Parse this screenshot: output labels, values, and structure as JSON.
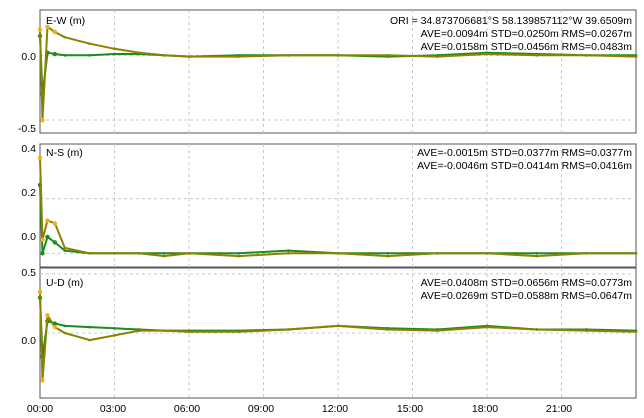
{
  "window": {
    "background": "#ffffff"
  },
  "colors": {
    "green": "#1f8a1f",
    "olive": "#8a8200",
    "orange": "#f2b011",
    "grid": "#c8c8c8",
    "axis": "#555555"
  },
  "header": {
    "ori": "ORI = 34.873706681°S   58.139857112°W 39.6509m"
  },
  "x_tick_labels": [
    "00:00",
    "03:00",
    "06:00",
    "09:00",
    "12:00",
    "15:00",
    "18:00",
    "21:00"
  ],
  "panels": [
    {
      "title": "E-W (m)",
      "stats": [
        "AVE=0.0094m STD=0.0250m RMS=0.0267m",
        "AVE=0.0158m STD=0.0456m RMS=0.0483m"
      ],
      "y_tick_labels": [
        "0.0",
        "-0.5"
      ]
    },
    {
      "title": "N-S (m)",
      "stats": [
        "AVE=-0.0015m STD=0.0377m RMS=0.0377m",
        "AVE=-0.0046m STD=0.0414m RMS=0.0416m"
      ],
      "y_tick_labels": [
        "0.4",
        "0.2",
        "0.0"
      ]
    },
    {
      "title": "U-D (m)",
      "stats": [
        "AVE=0.0408m STD=0.0656m RMS=0.0773m",
        "AVE=0.0269m STD=0.0588m RMS=0.0647m"
      ],
      "y_tick_labels": [
        "0.5",
        "0.0"
      ]
    }
  ],
  "chart_data": [
    {
      "type": "scatter",
      "title": "E-W (m)",
      "x_unit": "hours",
      "xlim": [
        0,
        24
      ],
      "ylim": [
        -0.6,
        0.35
      ],
      "series": [
        {
          "color": "#1f8a1f",
          "x": [
            0.0,
            0.1,
            0.3,
            0.6,
            1,
            2,
            3,
            4,
            5,
            6,
            8,
            10,
            12,
            14,
            16,
            18,
            20,
            22,
            24
          ],
          "y": [
            0.15,
            -0.3,
            0.02,
            0.01,
            0.0,
            0.0,
            0.01,
            0.01,
            0.0,
            -0.01,
            0.0,
            0.0,
            0.0,
            -0.01,
            0.0,
            0.02,
            0.01,
            0.0,
            0.0
          ]
        },
        {
          "color": "#8a8200",
          "x": [
            0.0,
            0.1,
            0.3,
            0.6,
            1,
            2,
            3,
            4,
            5,
            6,
            8,
            10,
            12,
            14,
            16,
            18,
            20,
            22,
            24
          ],
          "y": [
            0.2,
            -0.5,
            0.22,
            0.18,
            0.14,
            0.09,
            0.05,
            0.02,
            0.0,
            -0.01,
            -0.01,
            0.0,
            0.0,
            0.0,
            -0.01,
            0.01,
            0.0,
            0.0,
            -0.01
          ]
        }
      ]
    },
    {
      "type": "scatter",
      "title": "N-S (m)",
      "x_unit": "hours",
      "xlim": [
        0,
        24
      ],
      "ylim": [
        -0.05,
        0.4
      ],
      "series": [
        {
          "color": "#1f8a1f",
          "x": [
            0.0,
            0.1,
            0.3,
            0.6,
            1,
            2,
            3,
            4,
            5,
            6,
            8,
            10,
            12,
            14,
            16,
            18,
            20,
            22,
            24
          ],
          "y": [
            0.25,
            0.0,
            0.06,
            0.04,
            0.01,
            0.0,
            0.0,
            0.0,
            0.0,
            0.0,
            0.0,
            0.01,
            0.0,
            0.0,
            0.0,
            0.0,
            0.0,
            0.0,
            0.0
          ]
        },
        {
          "color": "#8a8200",
          "x": [
            0.0,
            0.1,
            0.3,
            0.6,
            1,
            2,
            3,
            4,
            5,
            6,
            8,
            10,
            12,
            14,
            16,
            18,
            20,
            22,
            24
          ],
          "y": [
            0.35,
            0.05,
            0.12,
            0.11,
            0.02,
            0.0,
            0.0,
            0.0,
            -0.01,
            0.0,
            -0.01,
            0.0,
            0.0,
            -0.01,
            0.0,
            0.0,
            -0.01,
            0.0,
            0.0
          ]
        }
      ]
    },
    {
      "type": "scatter",
      "title": "U-D (m)",
      "x_unit": "hours",
      "xlim": [
        0,
        24
      ],
      "ylim": [
        -0.55,
        0.55
      ],
      "series": [
        {
          "color": "#1f8a1f",
          "x": [
            0.0,
            0.1,
            0.3,
            0.6,
            1,
            2,
            3,
            4,
            5,
            6,
            8,
            10,
            12,
            14,
            16,
            18,
            20,
            22,
            24
          ],
          "y": [
            0.3,
            -0.2,
            0.1,
            0.08,
            0.06,
            0.05,
            0.04,
            0.03,
            0.02,
            0.02,
            0.02,
            0.03,
            0.06,
            0.04,
            0.03,
            0.06,
            0.03,
            0.03,
            0.02
          ]
        },
        {
          "color": "#8a8200",
          "x": [
            0.0,
            0.1,
            0.3,
            0.6,
            1,
            2,
            3,
            4,
            5,
            6,
            8,
            10,
            12,
            14,
            16,
            18,
            20,
            22,
            24
          ],
          "y": [
            0.35,
            -0.4,
            0.15,
            0.05,
            0.0,
            -0.06,
            -0.02,
            0.02,
            0.02,
            0.01,
            0.01,
            0.03,
            0.06,
            0.03,
            0.02,
            0.05,
            0.03,
            0.02,
            0.01
          ]
        }
      ]
    }
  ]
}
